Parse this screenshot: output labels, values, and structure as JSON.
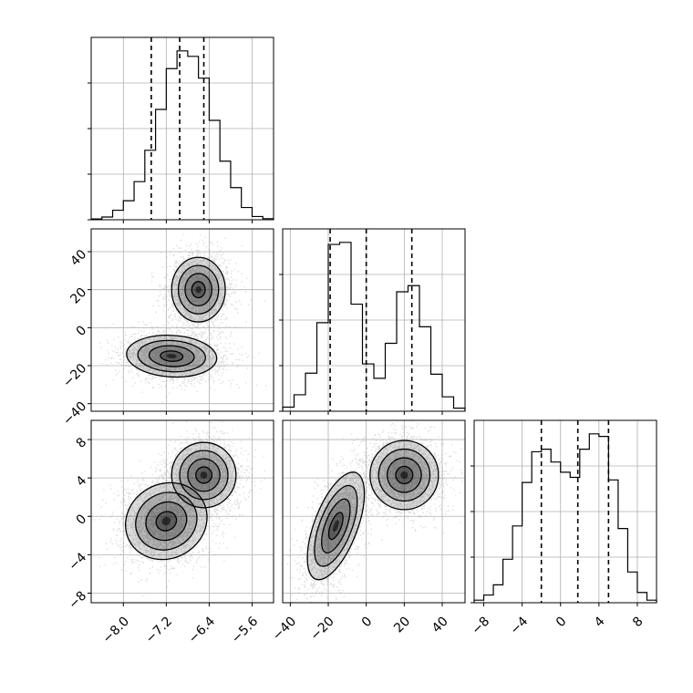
{
  "chart_data": {
    "type": "corner",
    "parameters": [
      {
        "range": [
          -8.6,
          -5.2
        ],
        "ticks": [
          -8.0,
          -7.2,
          -6.4,
          -5.6
        ],
        "tick_labels": [
          "−8.0",
          "−7.2",
          "−6.4",
          "−5.6"
        ],
        "quantiles": [
          -7.48,
          -6.95,
          -6.5
        ]
      },
      {
        "range": [
          -44,
          52
        ],
        "ticks": [
          -40,
          -20,
          0,
          20,
          40
        ],
        "tick_labels": [
          "−40",
          "−20",
          "0",
          "20",
          "40"
        ],
        "quantiles": [
          -19,
          0,
          24
        ]
      },
      {
        "range": [
          -9,
          10
        ],
        "ticks": [
          -8,
          -4,
          0,
          4,
          8
        ],
        "tick_labels": [
          "−8",
          "−4",
          "0",
          "4",
          "8"
        ],
        "quantiles": [
          -2,
          1.8,
          5
        ]
      }
    ],
    "histograms": [
      {
        "param": 0,
        "bins": [
          -8.6,
          -8.4,
          -8.2,
          -8.0,
          -7.8,
          -7.6,
          -7.4,
          -7.2,
          -7.0,
          -6.8,
          -6.6,
          -6.4,
          -6.2,
          -6.0,
          -5.8,
          -5.6,
          -5.4,
          -5.2
        ],
        "counts": [
          3,
          10,
          35,
          70,
          140,
          255,
          405,
          555,
          620,
          600,
          520,
          365,
          215,
          118,
          45,
          12,
          4
        ]
      },
      {
        "param": 1,
        "bins": [
          -44,
          -38,
          -32,
          -26,
          -20,
          -14,
          -8,
          -2,
          4,
          10,
          16,
          22,
          28,
          34,
          40,
          46,
          52
        ],
        "counts": [
          20,
          80,
          185,
          430,
          810,
          820,
          520,
          230,
          160,
          330,
          580,
          610,
          410,
          180,
          70,
          15
        ]
      },
      {
        "param": 2,
        "bins": [
          -9,
          -8,
          -7,
          -6,
          -5,
          -4,
          -3,
          -2,
          -1,
          0,
          1,
          2,
          3,
          4,
          5,
          6,
          7,
          8,
          9,
          10
        ],
        "counts": [
          10,
          30,
          70,
          170,
          300,
          470,
          590,
          600,
          550,
          510,
          490,
          600,
          660,
          650,
          480,
          290,
          120,
          40,
          10
        ]
      }
    ],
    "contour_levels": [
      "0.5-sigma",
      "1-sigma",
      "1.5-sigma",
      "2-sigma"
    ],
    "joint_distributions": [
      {
        "x_param": 0,
        "y_param": 1,
        "components": [
          {
            "mean": [
              -6.6,
              20
            ],
            "sd": [
              0.25,
              8.5
            ],
            "rho": 0
          },
          {
            "mean": [
              -7.1,
              -15
            ],
            "sd": [
              0.42,
              5.5
            ],
            "rho": -0.1
          }
        ]
      },
      {
        "x_param": 0,
        "y_param": 2,
        "components": [
          {
            "mean": [
              -6.5,
              4.3
            ],
            "sd": [
              0.3,
              1.7
            ],
            "rho": 0
          },
          {
            "mean": [
              -7.2,
              -0.5
            ],
            "sd": [
              0.38,
              2.0
            ],
            "rho": 0.1
          }
        ]
      },
      {
        "x_param": 1,
        "y_param": 2,
        "components": [
          {
            "mean": [
              20,
              4.3
            ],
            "sd": [
              9,
              1.8
            ],
            "rho": 0
          },
          {
            "mean": [
              -16,
              -1
            ],
            "sd": [
              7.5,
              2.8
            ],
            "rho": 0.6
          }
        ]
      }
    ],
    "colors": {
      "frame": "#000000",
      "grid": "#b0b0b0",
      "scatter": "#808080",
      "density": "#000000"
    },
    "grid": true
  }
}
